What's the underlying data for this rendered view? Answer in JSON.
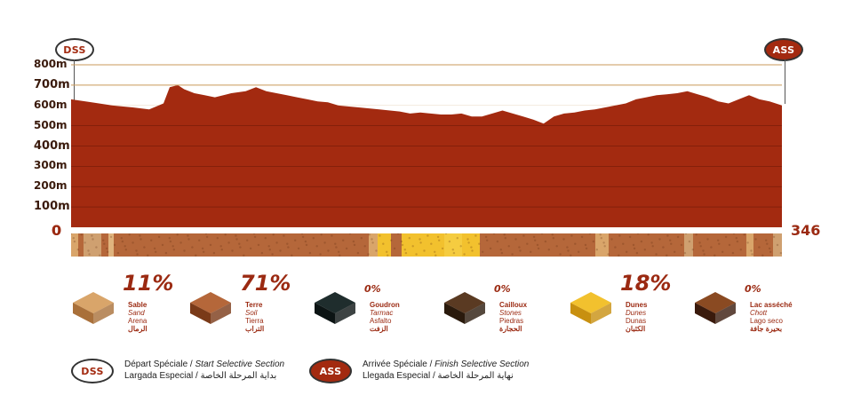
{
  "badges": {
    "start": "DSS",
    "finish": "ASS"
  },
  "colors": {
    "profile_fill": "#a32a10",
    "profile_dark": "#7a1c08",
    "accent_text": "#9b2a12",
    "reference_line": "#c99a5a",
    "sand": "#d9a56a",
    "soil": "#b5673a",
    "asphalt": "#1f2d2d",
    "stones": "#5a3a22",
    "dunes": "#f2c12e",
    "chott": "#8a4a22"
  },
  "chart_data": {
    "type": "area",
    "title": "",
    "xlabel": "",
    "ylabel": "",
    "x_range": [
      0,
      346
    ],
    "x_ticks": [
      "0",
      "346"
    ],
    "ylim": [
      0,
      800
    ],
    "y_ticks": [
      "0",
      "100m",
      "200m",
      "300m",
      "400m",
      "500m",
      "600m",
      "700m",
      "800m"
    ],
    "reference_lines": [
      700,
      800
    ],
    "series": [
      {
        "x": [
          0,
          10,
          20,
          30,
          38,
          45,
          48,
          52,
          55,
          60,
          65,
          70,
          78,
          85,
          90,
          95,
          100,
          105,
          110,
          115,
          120,
          125,
          130,
          140,
          150,
          160,
          165,
          170,
          175,
          180,
          185,
          190,
          195,
          200,
          205,
          210,
          215,
          220,
          225,
          230,
          235,
          240,
          245,
          250,
          255,
          260,
          265,
          270,
          275,
          280,
          285,
          290,
          295,
          300,
          305,
          310,
          315,
          320,
          325,
          330,
          335,
          340,
          346
        ],
        "values": [
          630,
          615,
          600,
          590,
          580,
          610,
          690,
          700,
          680,
          660,
          650,
          640,
          660,
          670,
          690,
          670,
          660,
          650,
          640,
          630,
          620,
          615,
          600,
          590,
          580,
          570,
          560,
          565,
          560,
          555,
          555,
          560,
          545,
          545,
          560,
          575,
          560,
          545,
          530,
          510,
          545,
          560,
          565,
          575,
          580,
          590,
          600,
          610,
          630,
          640,
          650,
          655,
          660,
          670,
          655,
          640,
          620,
          610,
          630,
          650,
          630,
          620,
          600
        ]
      }
    ]
  },
  "terrain": [
    {
      "pct": "11%",
      "fr": "Sable",
      "en": "Sand",
      "es": "Arena",
      "ar": "الرمال",
      "color": "#d9a56a",
      "dark": "#a9703a"
    },
    {
      "pct": "71%",
      "fr": "Terre",
      "en": "Soil",
      "es": "Tierra",
      "ar": "التراب",
      "color": "#b5673a",
      "dark": "#7a3a18"
    },
    {
      "pct": "0%",
      "fr": "Goudron",
      "en": "Tarmac",
      "es": "Asfalto",
      "ar": "الزفت",
      "color": "#1f2d2d",
      "dark": "#0c1414"
    },
    {
      "pct": "0%",
      "fr": "Cailloux",
      "en": "Stones",
      "es": "Piedras",
      "ar": "الحجارة",
      "color": "#5a3a22",
      "dark": "#2a1a0c"
    },
    {
      "pct": "18%",
      "fr": "Dunes",
      "en": "Dunes",
      "es": "Dunas",
      "ar": "الكثبان",
      "color": "#f2c12e",
      "dark": "#c89010"
    },
    {
      "pct": "0%",
      "fr": "Lac asséché",
      "en": "Chott",
      "es": "Lago seco",
      "ar": "بحيرة جافة",
      "color": "#8a4a22",
      "dark": "#3a1a0c"
    }
  ],
  "legend": {
    "start": {
      "fr": "Départ Spéciale /",
      "en": "Start Selective Section",
      "es": "Largada Especial /",
      "ar": "بداية المرحلة الخاصة"
    },
    "finish": {
      "fr": "Arrivée Spéciale /",
      "en": "Finish Selective Section",
      "es": "Llegada Especial /",
      "ar": "نهاية المرحلة الخاصة"
    }
  }
}
